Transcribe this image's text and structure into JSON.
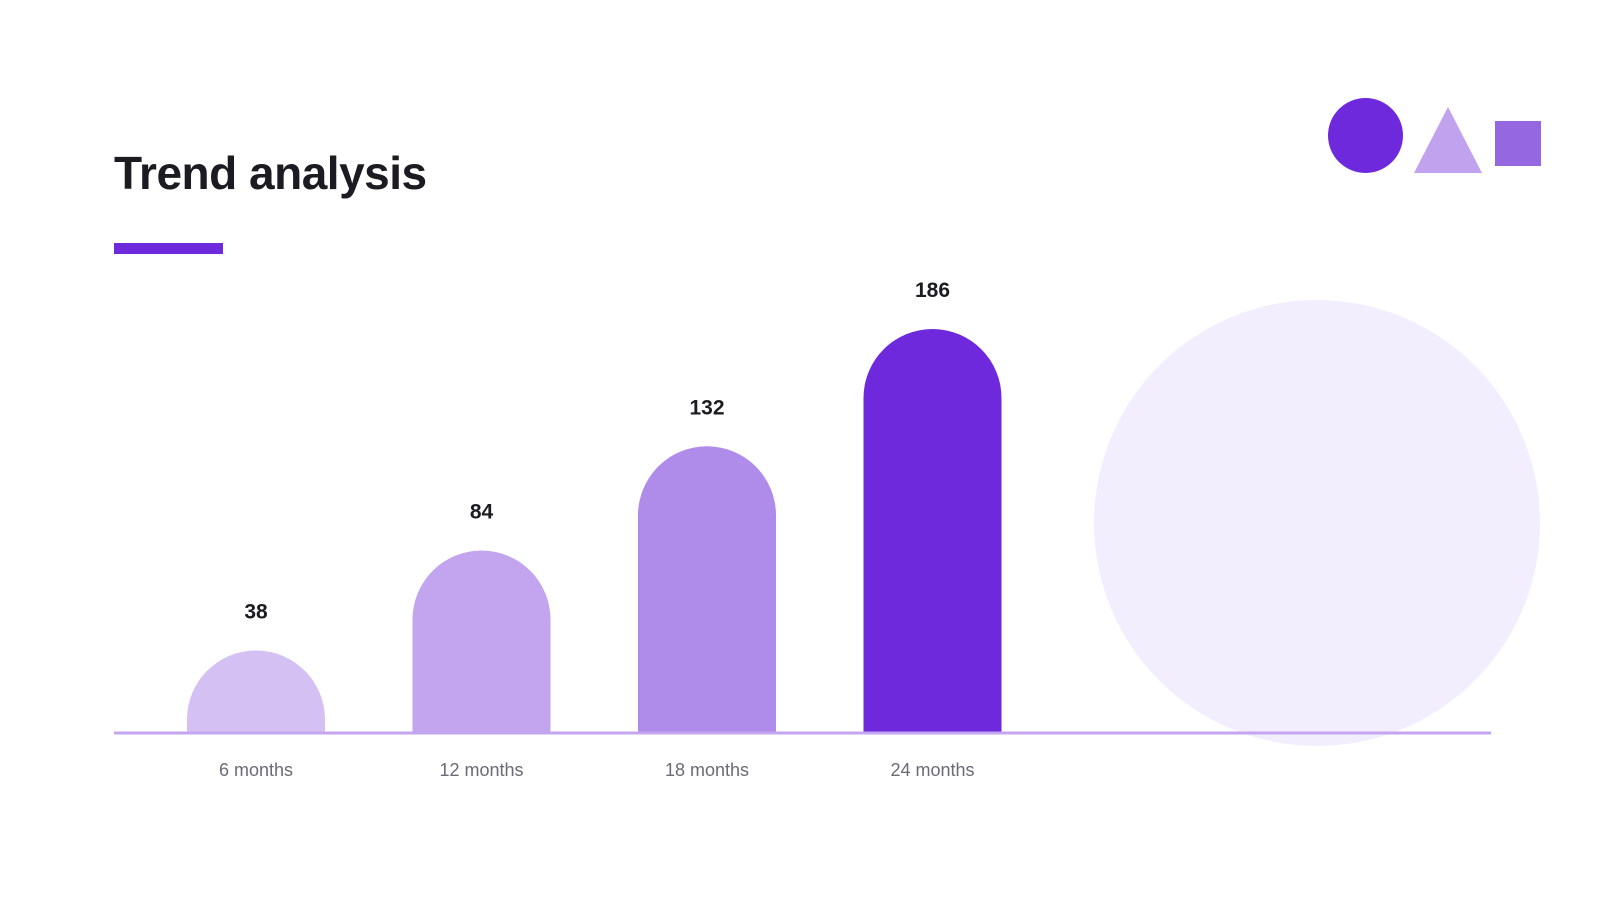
{
  "slide": {
    "title": "Trend analysis"
  },
  "colors": {
    "accent": "#6e29dc",
    "bar_shades": [
      "#d5c0f4",
      "#c2a4ef",
      "#b08cea",
      "#6e29dc"
    ],
    "baseline": "#c4a6ef",
    "big_circle": "#f2eefd",
    "deco_circle": "#6e29dc",
    "deco_triangle": "#c1a2ee",
    "deco_square": "#9568e2"
  },
  "decor": {
    "shapes": [
      "circle-icon",
      "triangle-icon",
      "square-icon"
    ]
  },
  "chart_data": {
    "type": "bar",
    "categories": [
      "6 months",
      "12 months",
      "18 months",
      "24 months"
    ],
    "values": [
      38,
      84,
      132,
      186
    ],
    "data_labels": [
      "38",
      "84",
      "132",
      "186"
    ],
    "title": "",
    "xlabel": "",
    "ylabel": "",
    "ylim": [
      0,
      186
    ],
    "grid": false,
    "legend": "none",
    "bar_style": "rounded-top"
  }
}
